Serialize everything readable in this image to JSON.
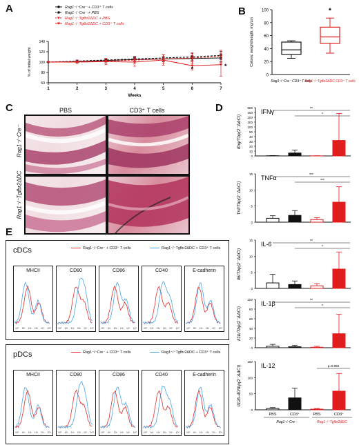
{
  "panel_labels": {
    "A": "A",
    "B": "B",
    "C": "C",
    "D": "D",
    "E": "E"
  },
  "panelA": {
    "legend": [
      "Rag1⁻/⁻Cre⁻ + CD3⁺ T cells",
      "Rag1⁻/⁻Cre⁻ + PBS",
      "Rag1⁻/⁻Tgfbr2ΔDC + PBS",
      "Rag1⁻/⁻Tgfbr2ΔDC + CD3⁺ T cells"
    ],
    "ylabel": "% of Initial weight",
    "xlabel": "Weeks",
    "star": "*",
    "colors": {
      "black": "#111111",
      "red": "#e01d1d"
    }
  },
  "panelB": {
    "ylabel": "Colonic weight/length, mg/cm",
    "xcat1": "Rag1⁻/⁻Cre⁻ CD3⁺ T cells",
    "xcat2": "Rag1⁻/⁻Tgfbr2ΔDC CD3⁺ T cells",
    "star": "*"
  },
  "panelC": {
    "col1": "PBS",
    "col2": "CD3⁺ T cells",
    "row1": "Rag1⁻/⁻Cre⁻",
    "row2": "Rag1⁻/⁻Tgfbr2ΔDC"
  },
  "panelD": {
    "xlabels": [
      "PBS",
      "CD3⁺",
      "PBS",
      "CD3⁺"
    ],
    "group1": "Rag1⁻/⁻Cre⁻",
    "group2": "Rag1⁻/⁻Tgfbr2ΔDC",
    "pval": "p=0.058"
  },
  "panelE": {
    "boxes": [
      {
        "name": "cDCs",
        "legend_red": "Rag1⁻/⁻Cre⁻ + CD3⁺ T cells",
        "legend_blue": "Rag1⁻/⁻Tgfbr2ΔDC + CD3⁺ T cells"
      },
      {
        "name": "pDCs",
        "legend_red": "Rag1⁻/⁻Cre⁻ + CD3⁺ T cells",
        "legend_blue": "Rag1⁻/⁻Tgfbr2ΔDC + CD3⁺ T cells"
      }
    ],
    "markers": [
      "MHCII",
      "CD80",
      "CD86",
      "CD40",
      "E-cadherin"
    ],
    "ticks": [
      "10⁰",
      "10¹",
      "10²",
      "10³",
      "10⁴",
      "10⁵"
    ],
    "colors": {
      "red": "#e32b2b",
      "blue": "#4aa3e6"
    }
  },
  "chart_data": [
    {
      "type": "line",
      "title": "",
      "xlabel": "Weeks",
      "ylabel": "% of Initial weight",
      "x": [
        1,
        2,
        3,
        4,
        5,
        6,
        7
      ],
      "ylim": [
        60,
        140
      ],
      "yticks": [
        60,
        80,
        100,
        120,
        140
      ],
      "series": [
        {
          "name": "Rag1⁻/⁻Cre⁻ + CD3⁺ T cells",
          "values": [
            100,
            101,
            103,
            105,
            106,
            107,
            108
          ],
          "color": "#111111",
          "style": "solid"
        },
        {
          "name": "Rag1⁻/⁻Cre⁻ + PBS",
          "values": [
            100,
            102,
            104,
            106,
            108,
            110,
            113
          ],
          "color": "#111111",
          "style": "dashed"
        },
        {
          "name": "Rag1⁻/⁻Tgfbr2ΔDC + PBS",
          "values": [
            100,
            101,
            102,
            104,
            106,
            108,
            111
          ],
          "color": "#e01d1d",
          "style": "dashed"
        },
        {
          "name": "Rag1⁻/⁻Tgfbr2ΔDC + CD3⁺ T cells",
          "values": [
            100,
            100,
            101,
            100,
            104,
            93,
            95
          ],
          "color": "#e01d1d",
          "style": "solid"
        }
      ]
    },
    {
      "type": "box",
      "title": "",
      "ylabel": "Colonic weight/length, mg/cm",
      "ylim": [
        0,
        100
      ],
      "yticks": [
        0,
        20,
        40,
        60,
        80,
        100
      ],
      "series": [
        {
          "name": "Rag1⁻/⁻Cre⁻ CD3⁺ T cells",
          "min": 25,
          "q1": 31,
          "median": 38,
          "q3": 50,
          "max": 52,
          "color": "#111111"
        },
        {
          "name": "Rag1⁻/⁻Tgfbr2ΔDC CD3⁺ T cells",
          "min": 33,
          "q1": 48,
          "median": 58,
          "q3": 73,
          "max": 87,
          "color": "#e01d1d"
        }
      ]
    },
    {
      "type": "bar",
      "title": "IFNγ",
      "ylabel": "Ifng/Tbp(2⁻ΔΔCt)",
      "categories": [
        "PBS",
        "CD3⁺",
        "PBS",
        "CD3⁺"
      ],
      "values": [
        2,
        30,
        1,
        160
      ],
      "errors": [
        2,
        30,
        1,
        280
      ],
      "yticks": [
        "0",
        "10",
        "20",
        "30",
        "40",
        "50",
        "100",
        "200",
        "300",
        "400",
        "500"
      ],
      "ylim": [
        0,
        500
      ],
      "stars": [
        "**",
        "*"
      ]
    },
    {
      "type": "bar",
      "title": "TNFα",
      "ylabel": "Tnf/Tbp(2⁻ΔΔCt)",
      "categories": [
        "PBS",
        "CD3⁺",
        "PBS",
        "CD3⁺"
      ],
      "values": [
        1.2,
        2.1,
        0.8,
        6.2
      ],
      "errors": [
        0.8,
        1.5,
        0.6,
        4.8
      ],
      "yticks": [
        "0",
        "5",
        "10",
        "15"
      ],
      "ylim": [
        0,
        15
      ],
      "stars": [
        "***",
        "***"
      ]
    },
    {
      "type": "bar",
      "title": "IL-6",
      "ylabel": "Il6/Tbp(2⁻ΔΔCt)",
      "categories": [
        "PBS",
        "CD3⁺",
        "PBS",
        "CD3⁺"
      ],
      "values": [
        1.7,
        1.2,
        0.8,
        6.0
      ],
      "errors": [
        2.7,
        1.1,
        0.7,
        5.3
      ],
      "yticks": [
        "0",
        "5",
        "10",
        "15"
      ],
      "ylim": [
        0,
        15
      ],
      "stars": [
        "**",
        "*"
      ]
    },
    {
      "type": "bar",
      "title": "IL-1β",
      "ylabel": "Il1b/Tbp(2⁻ΔΔCt)",
      "categories": [
        "PBS",
        "CD3⁺",
        "PBS",
        "CD3⁺"
      ],
      "values": [
        3,
        2,
        1,
        29
      ],
      "errors": [
        4,
        3,
        2,
        40
      ],
      "yticks": [
        "0",
        "20",
        "40",
        "60",
        "80",
        "100"
      ],
      "ylim": [
        0,
        100
      ],
      "stars": [
        "**",
        "*"
      ]
    },
    {
      "type": "bar",
      "title": "IL-12",
      "ylabel": "Il12b-40/tbp(2⁻ΔΔCt)",
      "categories": [
        "PBS",
        "CD3⁺",
        "PBS",
        "CD3⁺"
      ],
      "values": [
        4,
        37,
        2,
        58
      ],
      "errors": [
        3,
        30,
        2,
        55
      ],
      "yticks": [
        "0",
        "50",
        "100",
        "150"
      ],
      "ylim": [
        0,
        150
      ],
      "stars": []
    }
  ]
}
